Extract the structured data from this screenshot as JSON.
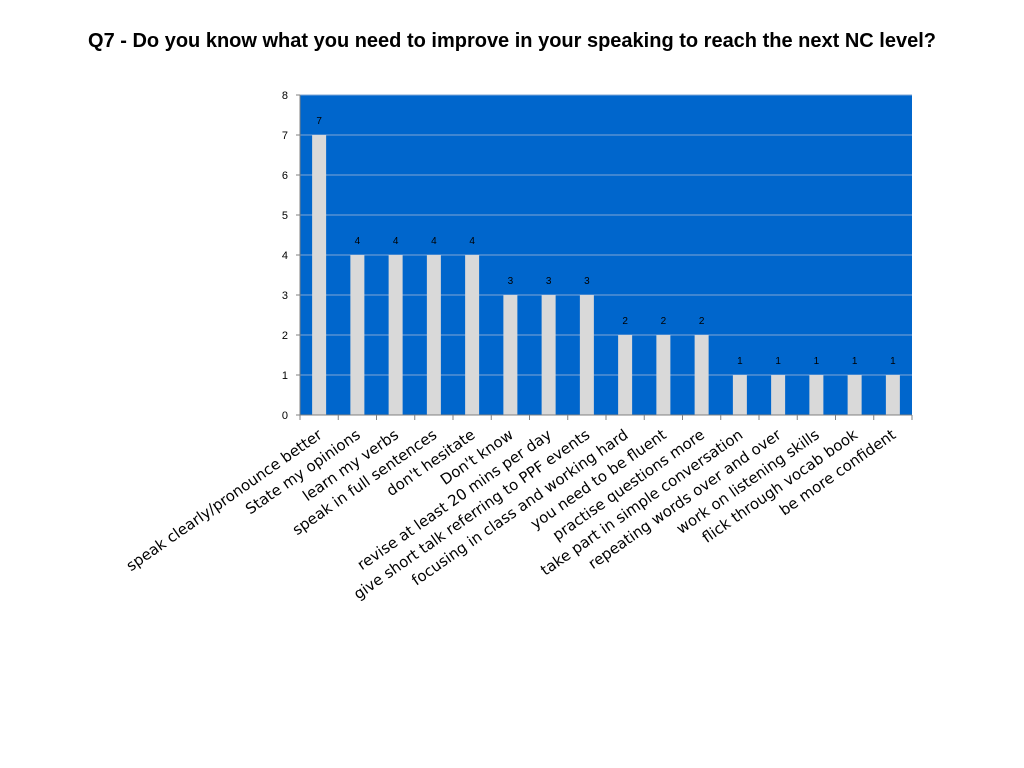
{
  "chart_data": {
    "type": "bar",
    "title": "Q7 - Do you know what you need to improve in your speaking to reach the next NC level?",
    "xlabel": "",
    "ylabel": "",
    "ylim": [
      0,
      8
    ],
    "yticks": [
      0,
      1,
      2,
      3,
      4,
      5,
      6,
      7,
      8
    ],
    "grid": true,
    "legend": "none",
    "categories": [
      "speak clearly/pronounce better",
      "State my opinions",
      "learn my verbs",
      "speak in full sentences",
      "don't hesitate",
      "Don't know",
      "revise at least 20 mins per day",
      "give short talk referring to PPF events",
      "focusing in class and working hard",
      "you need to be fluent",
      "practise questions more",
      "take part in simple conversation",
      "repeating words over and over",
      "work on listening skills",
      "flick through vocab book",
      "be more confident"
    ],
    "values": [
      7,
      4,
      4,
      4,
      4,
      3,
      3,
      3,
      2,
      2,
      2,
      1,
      1,
      1,
      1,
      1
    ],
    "colors": {
      "plot_background": "#0066CC",
      "bar_fill": "#D9D9D9",
      "gridline": "#7FA7D6",
      "axis": "#808080"
    }
  }
}
